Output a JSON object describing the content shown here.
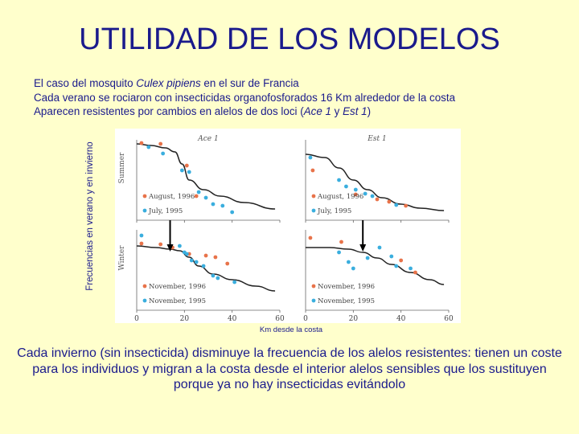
{
  "title": "UTILIDAD DE LOS MODELOS",
  "intro": {
    "line1_a": "El caso del mosquito ",
    "line1_species": "Culex pipiens",
    "line1_b": " en el sur de Francia",
    "line2": "Cada verano se rociaron con insecticidas organofosforados 16 Km alrededor de la costa",
    "line3_a": "Aparecen resistentes por cambios en alelos de dos loci (",
    "line3_ace": "Ace 1",
    "line3_and": " y ",
    "line3_est": "Est 1",
    "line3_b": ")"
  },
  "y_axis_label": "Frecuencias en verano y en invierno",
  "x_axis_label": "Km desde la costa",
  "conclusion": "Cada invierno (sin insecticida) disminuye la frecuencia de los alelos resistentes: tienen un coste para los individuos y migran a la costa desde el interior alelos sensibles que los sustituyen porque ya no hay insecticidas evitándolo",
  "colors": {
    "text": "#1a1a8c",
    "background": "#ffffcc",
    "orange": "#e8734a",
    "cyan": "#3aaede",
    "curve": "#222222"
  },
  "chart_data": [
    {
      "type": "scatter",
      "title": "Ace 1",
      "ylabel": "Summer",
      "xlim": [
        0,
        60
      ],
      "ylim": [
        0,
        1
      ],
      "series": [
        {
          "name": "August, 1996",
          "color": "#e8734a",
          "x": [
            2,
            10,
            21,
            25
          ],
          "y": [
            0.96,
            0.95,
            0.68,
            0.3
          ]
        },
        {
          "name": "July, 1995",
          "color": "#3aaede",
          "x": [
            5,
            11,
            19,
            22,
            26,
            29,
            32,
            36,
            40
          ],
          "y": [
            0.91,
            0.83,
            0.62,
            0.6,
            0.35,
            0.28,
            0.2,
            0.18,
            0.1
          ]
        }
      ],
      "curve": {
        "x": [
          0,
          6,
          12,
          16,
          19,
          22,
          28,
          35,
          45,
          58
        ],
        "y": [
          0.95,
          0.93,
          0.9,
          0.85,
          0.7,
          0.5,
          0.38,
          0.3,
          0.22,
          0.14
        ]
      }
    },
    {
      "type": "scatter",
      "title": "Est 1",
      "xlim": [
        0,
        60
      ],
      "ylim": [
        0,
        1
      ],
      "series": [
        {
          "name": "August, 1996",
          "color": "#e8734a",
          "x": [
            3,
            21,
            30,
            35,
            42
          ],
          "y": [
            0.62,
            0.32,
            0.26,
            0.23,
            0.18
          ]
        },
        {
          "name": "July, 1995",
          "color": "#3aaede",
          "x": [
            2,
            14,
            17,
            21,
            25,
            28,
            38
          ],
          "y": [
            0.78,
            0.5,
            0.42,
            0.38,
            0.33,
            0.3,
            0.19
          ]
        }
      ],
      "curve": {
        "x": [
          0,
          8,
          14,
          20,
          26,
          32,
          40,
          48,
          58
        ],
        "y": [
          0.82,
          0.78,
          0.65,
          0.5,
          0.38,
          0.28,
          0.2,
          0.15,
          0.12
        ]
      }
    },
    {
      "type": "scatter",
      "ylabel": "Winter",
      "xlim": [
        0,
        60
      ],
      "ylim": [
        0,
        1
      ],
      "series": [
        {
          "name": "November, 1996",
          "color": "#e8734a",
          "x": [
            2,
            10,
            15,
            22,
            29,
            33,
            38
          ],
          "y": [
            0.83,
            0.82,
            0.78,
            0.7,
            0.68,
            0.66,
            0.58
          ]
        },
        {
          "name": "November, 1995",
          "color": "#3aaede",
          "x": [
            2,
            18,
            20,
            21,
            23,
            25,
            28,
            32,
            34,
            41
          ],
          "y": [
            0.93,
            0.8,
            0.72,
            0.7,
            0.62,
            0.6,
            0.55,
            0.43,
            0.4,
            0.35
          ]
        }
      ],
      "curve": {
        "x": [
          0,
          8,
          14,
          18,
          22,
          26,
          32,
          40,
          50,
          58
        ],
        "y": [
          0.8,
          0.78,
          0.76,
          0.74,
          0.66,
          0.55,
          0.45,
          0.38,
          0.3,
          0.24
        ]
      },
      "arrow_x": 14
    },
    {
      "type": "scatter",
      "xlim": [
        0,
        60
      ],
      "ylim": [
        0,
        1
      ],
      "series": [
        {
          "name": "November, 1996",
          "color": "#e8734a",
          "x": [
            2,
            15,
            24,
            40,
            46
          ],
          "y": [
            0.9,
            0.85,
            0.8,
            0.62,
            0.47
          ]
        },
        {
          "name": "November, 1995",
          "color": "#3aaede",
          "x": [
            14,
            18,
            20,
            26,
            31,
            36,
            38,
            44
          ],
          "y": [
            0.72,
            0.6,
            0.52,
            0.65,
            0.78,
            0.67,
            0.55,
            0.52
          ]
        }
      ],
      "curve": {
        "x": [
          0,
          10,
          18,
          24,
          30,
          36,
          44,
          52,
          58
        ],
        "y": [
          0.78,
          0.78,
          0.76,
          0.72,
          0.65,
          0.57,
          0.47,
          0.38,
          0.32
        ]
      },
      "arrow_x": 24
    }
  ],
  "x_ticks": [
    "0",
    "20",
    "40",
    "60"
  ]
}
